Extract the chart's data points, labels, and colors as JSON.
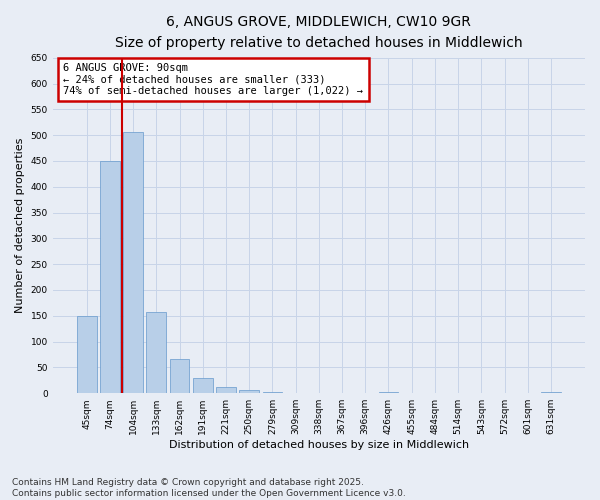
{
  "title_line1": "6, ANGUS GROVE, MIDDLEWICH, CW10 9GR",
  "title_line2": "Size of property relative to detached houses in Middlewich",
  "xlabel": "Distribution of detached houses by size in Middlewich",
  "ylabel": "Number of detached properties",
  "categories": [
    "45sqm",
    "74sqm",
    "104sqm",
    "133sqm",
    "162sqm",
    "191sqm",
    "221sqm",
    "250sqm",
    "279sqm",
    "309sqm",
    "338sqm",
    "367sqm",
    "396sqm",
    "426sqm",
    "455sqm",
    "484sqm",
    "514sqm",
    "543sqm",
    "572sqm",
    "601sqm",
    "631sqm"
  ],
  "values": [
    150,
    450,
    507,
    158,
    67,
    30,
    12,
    7,
    2,
    0,
    0,
    0,
    0,
    3,
    0,
    0,
    0,
    0,
    0,
    0,
    2
  ],
  "bar_color": "#b8cfe8",
  "bar_edge_color": "#6699cc",
  "vline_x": 1.5,
  "annotation_title": "6 ANGUS GROVE: 90sqm",
  "annotation_line2": "← 24% of detached houses are smaller (333)",
  "annotation_line3": "74% of semi-detached houses are larger (1,022) →",
  "annotation_box_color": "#cc0000",
  "annotation_bg": "#ffffff",
  "ylim": [
    0,
    650
  ],
  "yticks": [
    0,
    50,
    100,
    150,
    200,
    250,
    300,
    350,
    400,
    450,
    500,
    550,
    600,
    650
  ],
  "grid_color": "#c8d4e8",
  "background_color": "#e8edf5",
  "footer_line1": "Contains HM Land Registry data © Crown copyright and database right 2025.",
  "footer_line2": "Contains public sector information licensed under the Open Government Licence v3.0.",
  "title_fontsize": 10,
  "subtitle_fontsize": 9,
  "axis_label_fontsize": 8,
  "tick_fontsize": 6.5,
  "annotation_fontsize": 7.5,
  "footer_fontsize": 6.5
}
